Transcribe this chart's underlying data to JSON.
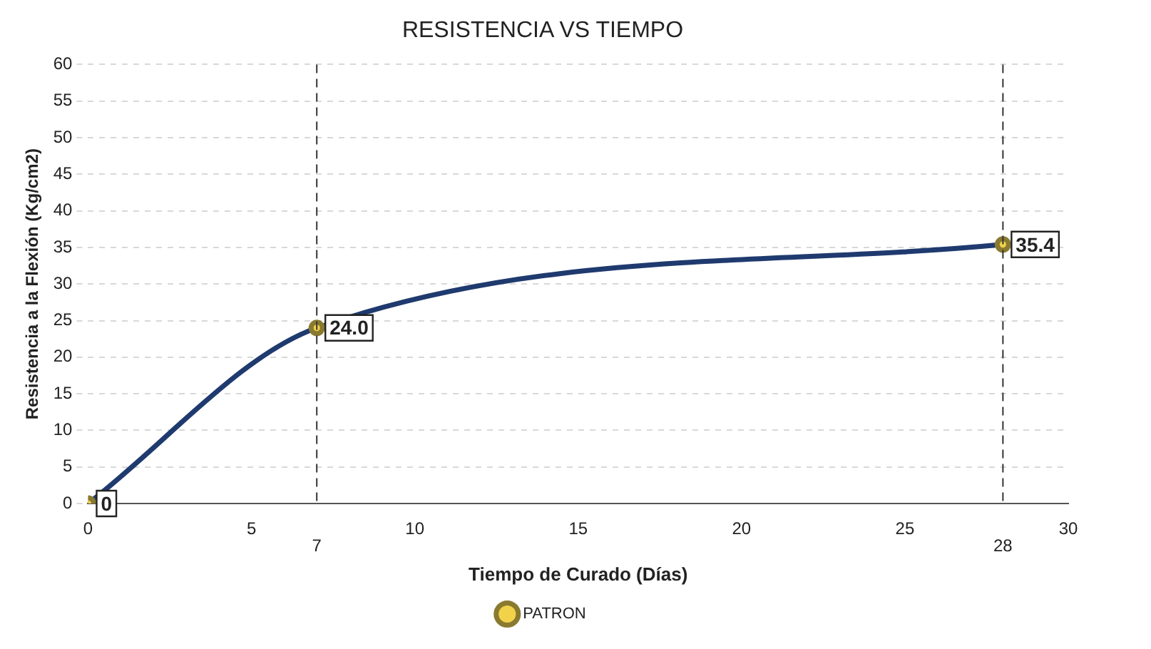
{
  "chart_data": {
    "type": "line",
    "title": "RESISTENCIA VS TIEMPO",
    "xlabel": "Tiempo de Curado (Días)",
    "ylabel": "Resistencia a la Flexión (Kg/cm2)",
    "x": [
      0,
      7,
      28
    ],
    "series": [
      {
        "name": "PATRON",
        "color": "#1f3a6e",
        "values": [
          0,
          24.0,
          35.4
        ],
        "value_labels": [
          "0",
          "24.0",
          "35.4"
        ]
      }
    ],
    "xlim": [
      0,
      30
    ],
    "xticks": [
      0,
      5,
      10,
      15,
      20,
      25,
      30
    ],
    "ylim": [
      0,
      60
    ],
    "yticks": [
      0,
      5,
      10,
      15,
      20,
      25,
      30,
      35,
      40,
      45,
      50,
      55,
      60
    ],
    "grid": "y",
    "legend": "bottom",
    "marker": "circle",
    "line_style": "solid",
    "ref_lines": [
      {
        "axis": "x",
        "value": 7,
        "label": "7",
        "line_style": "dashed"
      },
      {
        "axis": "x",
        "value": 28,
        "label": "28",
        "line_style": "dashed"
      }
    ]
  }
}
